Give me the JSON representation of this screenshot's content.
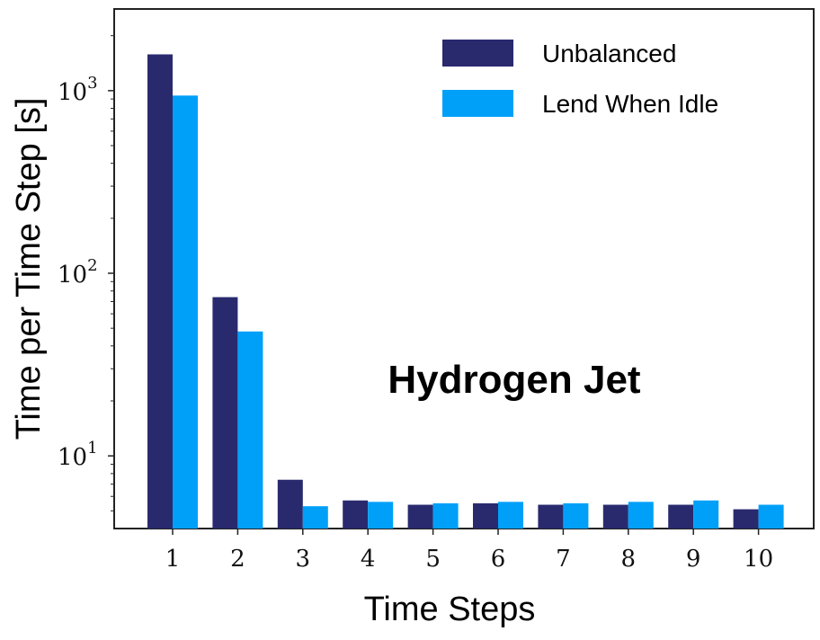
{
  "chart_data": {
    "type": "bar",
    "categories": [
      "1",
      "2",
      "3",
      "4",
      "5",
      "6",
      "7",
      "8",
      "9",
      "10"
    ],
    "series": [
      {
        "name": "Unbalanced",
        "color": "#292a6e",
        "values": [
          1580,
          74,
          7.4,
          5.7,
          5.4,
          5.5,
          5.4,
          5.4,
          5.4,
          5.1
        ]
      },
      {
        "name": "Lend When Idle",
        "color": "#00a0f8",
        "values": [
          940,
          48,
          5.3,
          5.6,
          5.5,
          5.6,
          5.5,
          5.6,
          5.7,
          5.4
        ]
      }
    ],
    "xlabel": "Time Steps",
    "ylabel": "Time per Time Step [s]",
    "yscale": "log",
    "ylim": [
      4,
      2800
    ],
    "yticks": [
      {
        "value": 10,
        "base": "10",
        "exp": "1"
      },
      {
        "value": 100,
        "base": "10",
        "exp": "2"
      },
      {
        "value": 1000,
        "base": "10",
        "exp": "3"
      }
    ],
    "annotation": "Hydrogen Jet",
    "legend_position": "top-right",
    "grid": false
  }
}
